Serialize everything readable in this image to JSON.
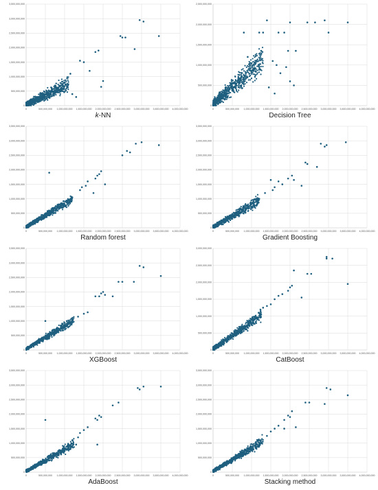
{
  "colors": {
    "points": "#1f5f7f",
    "grid": "#d9d9d9"
  },
  "x_ticks": [
    "0",
    "500,000,000",
    "1,000,000,000",
    "1,500,000,000",
    "2,000,000,000",
    "2,500,000,000",
    "3,000,000,000",
    "3,500,000,000",
    "4,000,000,000"
  ],
  "y_ticks": [
    "0",
    "500,000,000",
    "1,000,000,000",
    "1,500,000,000",
    "2,000,000,000",
    "2,500,000,000",
    "3,000,000,000",
    "3,500,000,000"
  ],
  "y_ticks_short": [
    "0",
    "500,000,000",
    "1,000,000,000",
    "1,500,000,000",
    "2,000,000,000",
    "2,500,000,000"
  ],
  "chart_data": [
    {
      "type": "scatter",
      "title": "k-NN",
      "xlim": [
        0,
        4000000000
      ],
      "ylim": [
        0,
        3500000000
      ],
      "grid": true,
      "series": [
        {
          "x": [
            2950000000,
            3050000000,
            2450000000,
            2500000000,
            2580000000,
            3450000000,
            2820000000,
            1800000000,
            1880000000,
            1400000000,
            1500000000,
            1650000000,
            1150000000,
            1950000000,
            2000000000,
            1200000000,
            1300000000
          ],
          "y": [
            2950000000,
            2900000000,
            2400000000,
            2350000000,
            2350000000,
            2400000000,
            1950000000,
            1850000000,
            1900000000,
            1550000000,
            1500000000,
            1200000000,
            1100000000,
            650000000,
            850000000,
            400000000,
            300000000
          ]
        }
      ],
      "cloud": {
        "x_max": 1100000000,
        "slope": 0.65,
        "spread": 350000000,
        "points": 700,
        "base": 40000000
      }
    },
    {
      "type": "scatter",
      "title": "Decision Tree",
      "xlim": [
        0,
        4000000000
      ],
      "ylim": [
        0,
        2500000000
      ],
      "grid": true,
      "series": [
        {
          "x": [
            800000000,
            1200000000,
            1300000000,
            1400000000,
            1700000000,
            2000000000,
            2450000000,
            2650000000,
            2900000000,
            3000000000,
            3500000000,
            1850000000,
            2150000000,
            1950000000,
            1250000000,
            900000000,
            1550000000,
            1650000000,
            1750000000,
            2000000000,
            2100000000,
            1450000000,
            1600000000,
            1900000000
          ],
          "y": [
            1800000000,
            1800000000,
            1800000000,
            2100000000,
            1800000000,
            2050000000,
            2050000000,
            2050000000,
            2100000000,
            1800000000,
            2050000000,
            1800000000,
            1350000000,
            1350000000,
            1350000000,
            1200000000,
            1100000000,
            1000000000,
            800000000,
            600000000,
            500000000,
            450000000,
            300000000,
            950000000
          ]
        }
      ],
      "cloud": {
        "x_max": 1300000000,
        "slope": 0.85,
        "spread": 450000000,
        "points": 700,
        "base": 30000000
      }
    },
    {
      "type": "scatter",
      "title": "Random forest",
      "xlim": [
        0,
        4000000000
      ],
      "ylim": [
        0,
        3500000000
      ],
      "grid": true,
      "series": [
        {
          "x": [
            3000000000,
            2850000000,
            3450000000,
            2620000000,
            2700000000,
            2500000000,
            1950000000,
            1900000000,
            1850000000,
            1800000000,
            1600000000,
            1550000000,
            1450000000,
            1400000000,
            1200000000,
            600000000,
            2050000000,
            1750000000
          ],
          "y": [
            2950000000,
            2900000000,
            2850000000,
            2650000000,
            2600000000,
            2500000000,
            1950000000,
            1850000000,
            1800000000,
            1700000000,
            1600000000,
            1450000000,
            1400000000,
            1300000000,
            1050000000,
            1900000000,
            1500000000,
            1200000000
          ]
        }
      ],
      "cloud": {
        "x_max": 1200000000,
        "slope": 0.8,
        "spread": 200000000,
        "points": 650,
        "base": 30000000
      }
    },
    {
      "type": "scatter",
      "title": "Gradient Boosting",
      "xlim": [
        0,
        4000000000
      ],
      "ylim": [
        0,
        3500000000
      ],
      "grid": true,
      "series": [
        {
          "x": [
            2800000000,
            2950000000,
            3450000000,
            2900000000,
            2400000000,
            2450000000,
            2700000000,
            2050000000,
            1950000000,
            2100000000,
            1700000000,
            1800000000,
            1600000000,
            1550000000,
            1350000000,
            1200000000,
            1500000000,
            2300000000
          ],
          "y": [
            2900000000,
            2850000000,
            2950000000,
            2800000000,
            2250000000,
            2200000000,
            2100000000,
            1800000000,
            1700000000,
            1650000000,
            1600000000,
            1500000000,
            1400000000,
            1300000000,
            1200000000,
            1000000000,
            1650000000,
            1450000000
          ]
        }
      ],
      "cloud": {
        "x_max": 1200000000,
        "slope": 0.75,
        "spread": 230000000,
        "points": 650,
        "base": 30000000
      }
    },
    {
      "type": "scatter",
      "title": "XGBoost",
      "xlim": [
        0,
        4000000000
      ],
      "ylim": [
        0,
        3500000000
      ],
      "grid": true,
      "series": [
        {
          "x": [
            2950000000,
            3050000000,
            3500000000,
            2500000000,
            2400000000,
            2800000000,
            2000000000,
            1950000000,
            1900000000,
            2050000000,
            2250000000,
            1800000000,
            1600000000,
            1500000000,
            1350000000,
            1200000000,
            1100000000,
            500000000
          ],
          "y": [
            2900000000,
            2850000000,
            2550000000,
            2350000000,
            2350000000,
            2350000000,
            2000000000,
            1950000000,
            1850000000,
            1900000000,
            1850000000,
            1850000000,
            1300000000,
            1250000000,
            1150000000,
            1050000000,
            800000000,
            1000000000
          ]
        }
      ],
      "cloud": {
        "x_max": 1250000000,
        "slope": 0.8,
        "spread": 200000000,
        "points": 650,
        "base": 30000000
      }
    },
    {
      "type": "scatter",
      "title": "CatBoost",
      "xlim": [
        0,
        4000000000
      ],
      "ylim": [
        0,
        3000000000
      ],
      "grid": true,
      "series": [
        {
          "x": [
            2950000000,
            2950000000,
            3100000000,
            3500000000,
            2450000000,
            2550000000,
            2100000000,
            2300000000,
            2050000000,
            2000000000,
            1700000000,
            1800000000,
            1950000000,
            1600000000,
            1500000000,
            1400000000,
            1250000000,
            1300000000
          ],
          "y": [
            2750000000,
            2700000000,
            2700000000,
            1950000000,
            2250000000,
            2250000000,
            2350000000,
            1550000000,
            1900000000,
            1850000000,
            1600000000,
            1650000000,
            1750000000,
            1500000000,
            1350000000,
            1300000000,
            1050000000,
            1250000000
          ]
        }
      ],
      "cloud": {
        "x_max": 1250000000,
        "slope": 0.8,
        "spread": 220000000,
        "points": 650,
        "base": 30000000
      }
    },
    {
      "type": "scatter",
      "title": "AdaBoost",
      "xlim": [
        0,
        4000000000
      ],
      "ylim": [
        0,
        3500000000
      ],
      "grid": true,
      "series": [
        {
          "x": [
            3050000000,
            3500000000,
            2900000000,
            2950000000,
            2400000000,
            2250000000,
            1900000000,
            1950000000,
            1800000000,
            1850000000,
            1600000000,
            1500000000,
            1400000000,
            1350000000,
            1200000000,
            500000000,
            1850000000,
            1300000000
          ],
          "y": [
            2950000000,
            2950000000,
            2900000000,
            2850000000,
            2400000000,
            2300000000,
            1950000000,
            1900000000,
            1850000000,
            1800000000,
            1550000000,
            1450000000,
            1350000000,
            1200000000,
            1100000000,
            1800000000,
            950000000,
            950000000
          ]
        }
      ],
      "cloud": {
        "x_max": 1250000000,
        "slope": 0.75,
        "spread": 200000000,
        "points": 650,
        "base": 30000000
      }
    },
    {
      "type": "scatter",
      "title": "Stacking method",
      "xlim": [
        0,
        4000000000
      ],
      "ylim": [
        0,
        3500000000
      ],
      "grid": true,
      "series": [
        {
          "x": [
            2950000000,
            3050000000,
            3500000000,
            2400000000,
            2500000000,
            2900000000,
            2050000000,
            1950000000,
            2000000000,
            1850000000,
            1700000000,
            1600000000,
            1500000000,
            1400000000,
            1200000000,
            1100000000,
            1850000000,
            2150000000
          ],
          "y": [
            2900000000,
            2850000000,
            2650000000,
            2400000000,
            2400000000,
            2350000000,
            2100000000,
            1950000000,
            1900000000,
            1800000000,
            1600000000,
            1500000000,
            1400000000,
            1250000000,
            1100000000,
            1000000000,
            1500000000,
            1550000000
          ]
        }
      ],
      "cloud": {
        "x_max": 1300000000,
        "slope": 0.8,
        "spread": 210000000,
        "points": 650,
        "base": 30000000
      }
    }
  ]
}
